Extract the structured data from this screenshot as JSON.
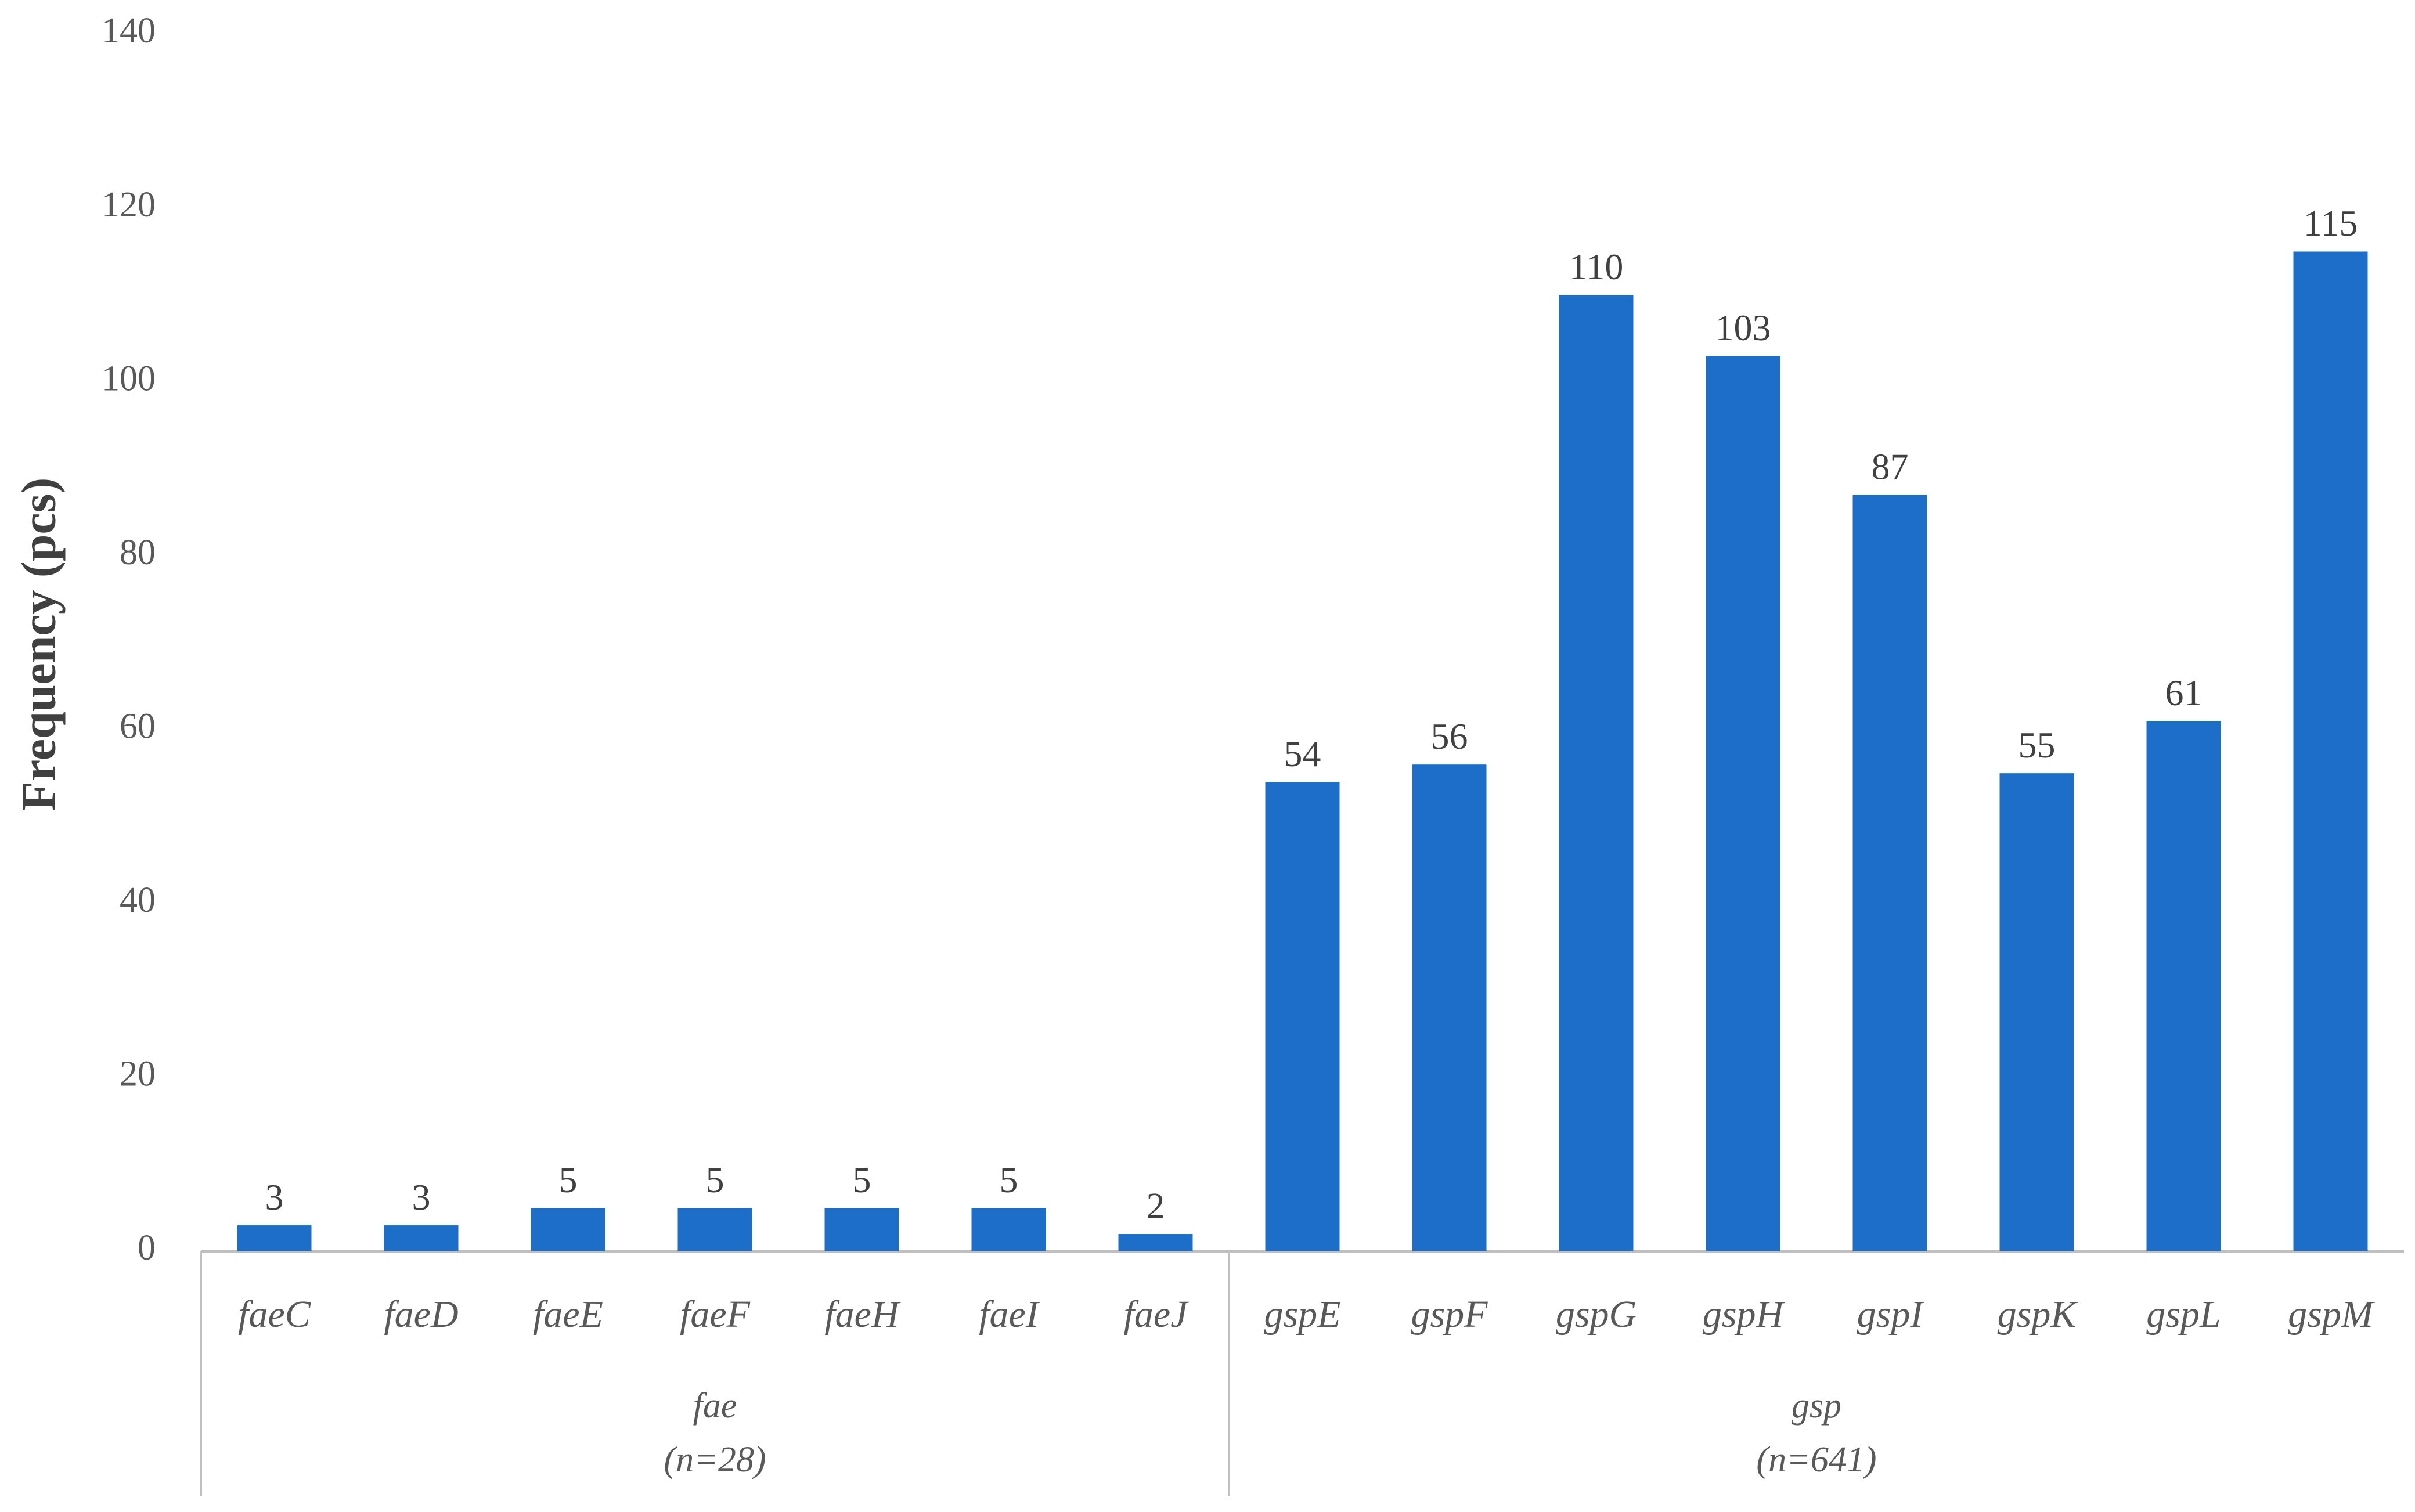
{
  "chart_data": {
    "type": "bar",
    "y_label": "Frequency (pcs)",
    "color": "#1c6ec9",
    "ylim": [
      0,
      140
    ],
    "yticks": [
      0,
      20,
      40,
      60,
      80,
      100,
      120,
      140
    ],
    "grid": false,
    "groups": [
      {
        "name": "fae",
        "note": "(n=28)",
        "categories": [
          "faeC",
          "faeD",
          "faeE",
          "faeF",
          "faeH",
          "faeI",
          "faeJ"
        ],
        "values": [
          3,
          3,
          5,
          5,
          5,
          5,
          2
        ]
      },
      {
        "name": "gsp",
        "note": "(n=641)",
        "categories": [
          "gspE",
          "gspF",
          "gspG",
          "gspH",
          "gspI",
          "gspK",
          "gspL",
          "gspM"
        ],
        "values": [
          54,
          56,
          110,
          103,
          87,
          55,
          61,
          115
        ]
      }
    ]
  }
}
